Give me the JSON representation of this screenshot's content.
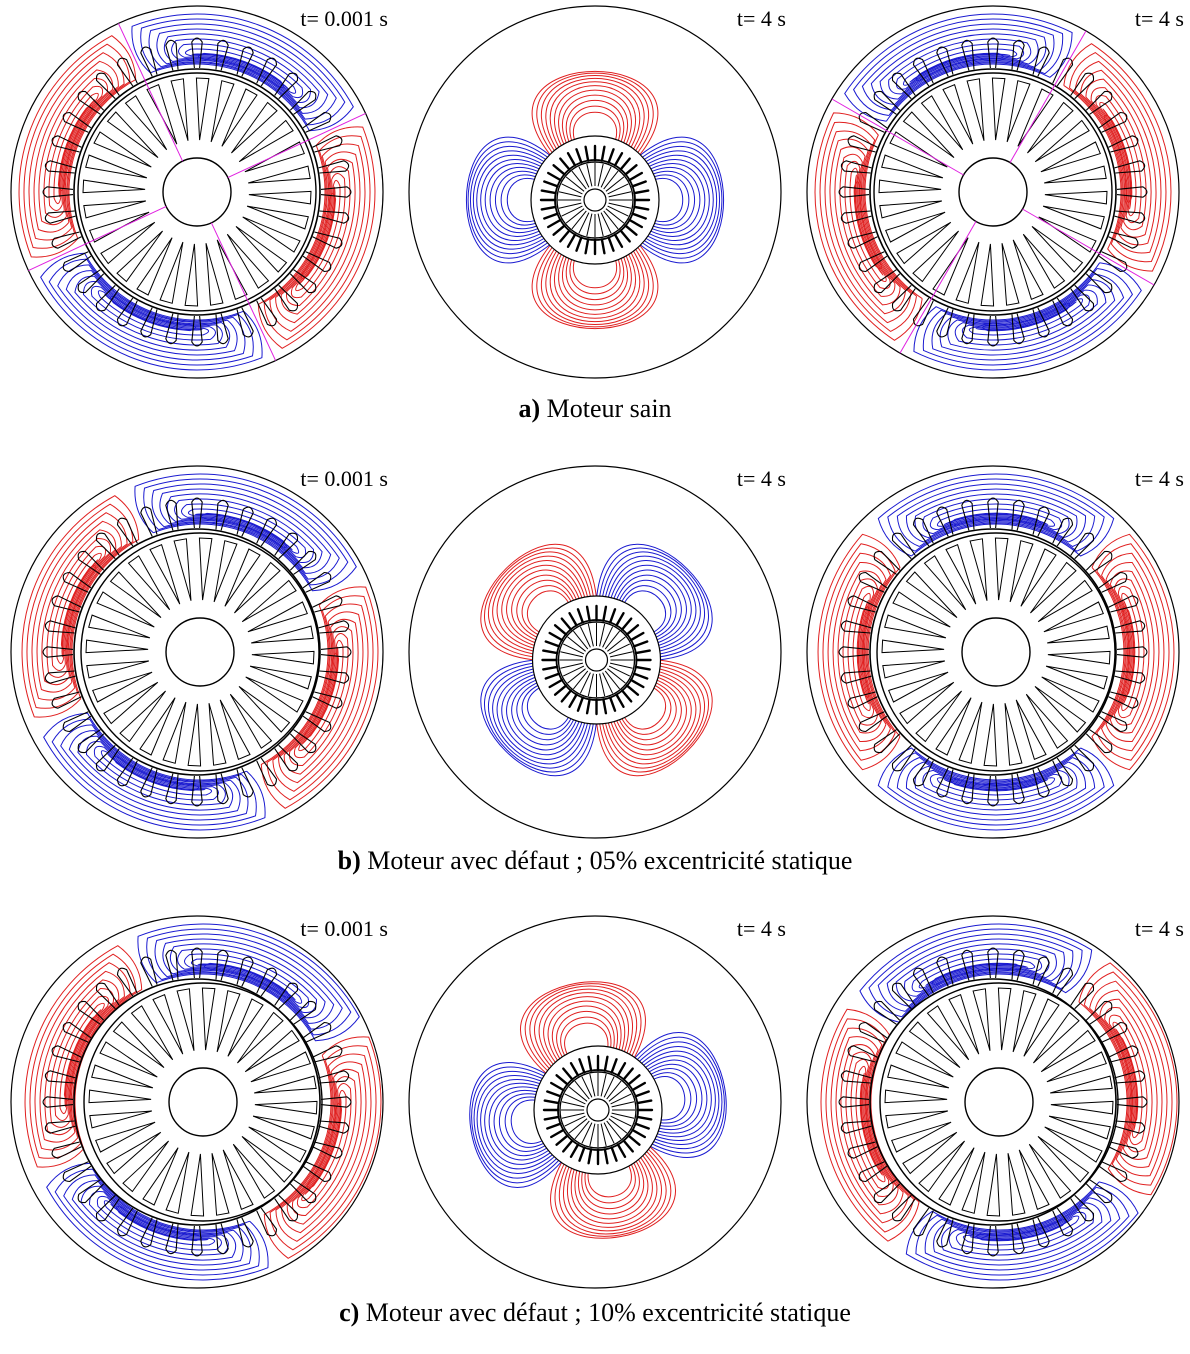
{
  "colors": {
    "flux_positive": "#e02020",
    "flux_negative": "#1a1ad0",
    "structure": "#000000",
    "axis_line": "#e020e0"
  },
  "rows": [
    {
      "caption_letter": "a)",
      "caption_text": " Moteur sain",
      "panels": [
        {
          "time": "t= 0.001 s",
          "view": "zoomed",
          "poles": 4,
          "rotation_deg": 20,
          "eccentricity": 0,
          "axes": true
        },
        {
          "time": "t= 4 s",
          "view": "far",
          "poles": 4,
          "rotation_deg": 45,
          "eccentricity": 0,
          "axes": false
        },
        {
          "time": "t= 4 s",
          "view": "zoomed",
          "poles": 4,
          "rotation_deg": -15,
          "eccentricity": 0,
          "axes": true
        }
      ]
    },
    {
      "caption_letter": "b)",
      "caption_text": " Moteur avec défaut ; 05% excentricité statique",
      "panels": [
        {
          "time": "t= 0.001 s",
          "view": "zoomed",
          "poles": 4,
          "rotation_deg": 20,
          "eccentricity": 0.05,
          "axes": false
        },
        {
          "time": "t= 4 s",
          "view": "far",
          "poles": 4,
          "rotation_deg": 0,
          "eccentricity": 0.05,
          "axes": false
        },
        {
          "time": "t= 4 s",
          "view": "zoomed",
          "poles": 4,
          "rotation_deg": 0,
          "eccentricity": 0.05,
          "axes": false
        }
      ]
    },
    {
      "caption_letter": "c)",
      "caption_text": " Moteur avec défaut ; 10% excentricité statique",
      "panels": [
        {
          "time": "t= 0.001 s",
          "view": "zoomed",
          "poles": 4,
          "rotation_deg": 20,
          "eccentricity": 0.1,
          "axes": false
        },
        {
          "time": "t= 4 s",
          "view": "far",
          "poles": 4,
          "rotation_deg": 35,
          "eccentricity": 0.1,
          "axes": false
        },
        {
          "time": "t= 4 s",
          "view": "zoomed",
          "poles": 4,
          "rotation_deg": -10,
          "eccentricity": 0.1,
          "axes": false
        }
      ]
    }
  ]
}
